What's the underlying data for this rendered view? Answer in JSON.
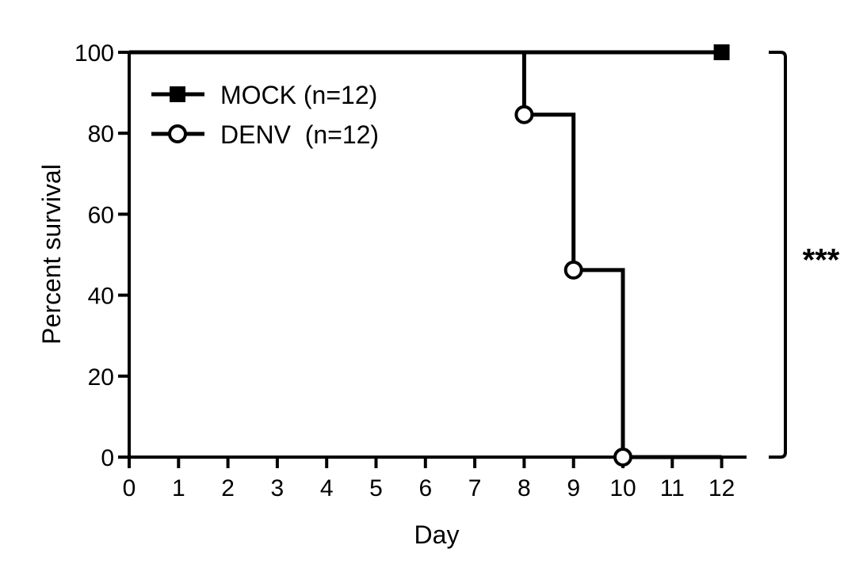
{
  "chart_data": {
    "type": "line",
    "subtype": "kaplan-meier step",
    "title": "",
    "xlabel": "Day",
    "ylabel": "Percent survival",
    "xlim": [
      0,
      12
    ],
    "ylim": [
      0,
      100
    ],
    "x_ticks": [
      "0",
      "1",
      "2",
      "3",
      "4",
      "5",
      "6",
      "7",
      "8",
      "9",
      "10",
      "11",
      "12"
    ],
    "y_ticks": [
      "0",
      "20",
      "40",
      "60",
      "80",
      "100"
    ],
    "grid": false,
    "legend_position": "top-left",
    "series": [
      {
        "name": "MOCK (n=12)",
        "marker": "filled-square",
        "color": "#000000",
        "x": [
          0,
          12
        ],
        "y": [
          100,
          100
        ],
        "marker_points": [
          {
            "x": 12,
            "y": 100
          }
        ]
      },
      {
        "name": "DENV  (n=12)",
        "marker": "open-circle",
        "color": "#000000",
        "x": [
          0,
          8,
          9,
          10,
          12
        ],
        "y": [
          100,
          84.6,
          46.2,
          0,
          0
        ],
        "marker_points": [
          {
            "x": 8,
            "y": 84.6
          },
          {
            "x": 9,
            "y": 46.2
          },
          {
            "x": 10,
            "y": 0
          }
        ]
      }
    ],
    "annotations": [
      {
        "text": "***",
        "type": "significance-bracket",
        "spans_y": [
          0,
          100
        ]
      }
    ]
  }
}
